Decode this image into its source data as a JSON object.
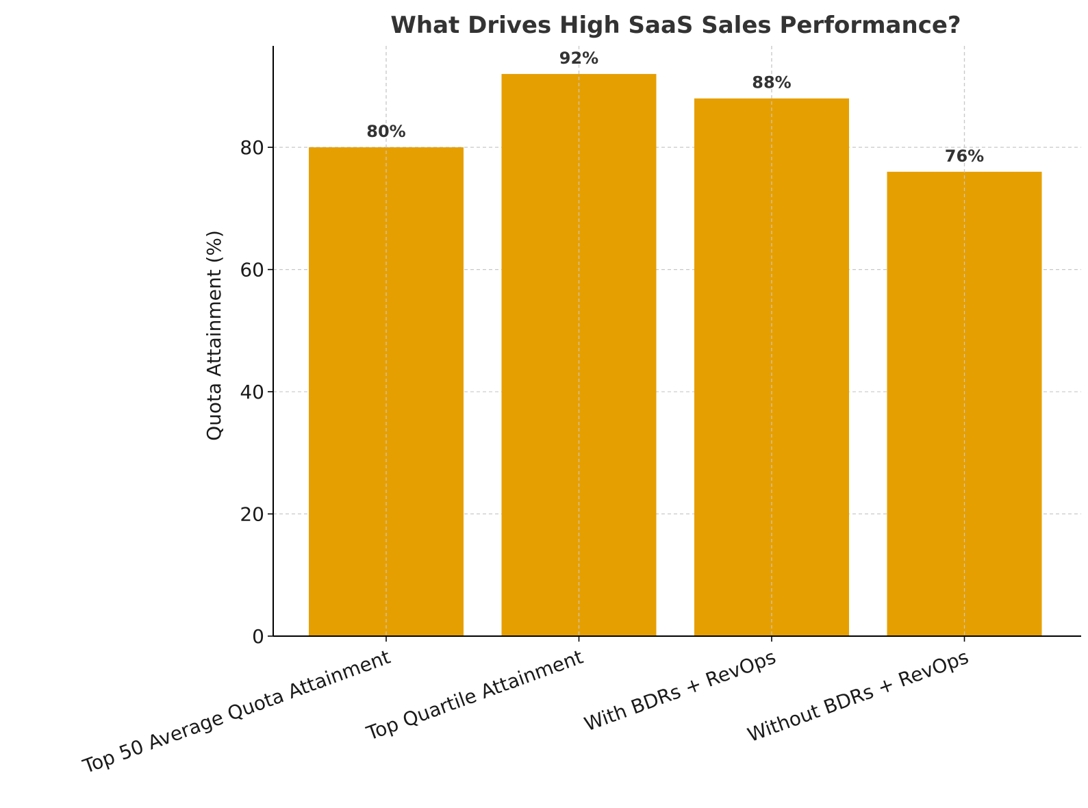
{
  "chart_data": {
    "type": "bar",
    "title": "What Drives High SaaS Sales Performance?",
    "xlabel": "",
    "ylabel": "Quota Attainment (%)",
    "categories": [
      "Top 50 Average Quota Attainment",
      "Top Quartile Attainment",
      "With BDRs + RevOps",
      "Without BDRs + RevOps"
    ],
    "values": [
      80,
      92,
      88,
      76
    ],
    "data_labels": [
      "80%",
      "92%",
      "88%",
      "76%"
    ],
    "ylim": [
      0,
      96.6
    ],
    "yticks": [
      0,
      20,
      40,
      60,
      80
    ],
    "grid": true,
    "bar_color": "#E69F00",
    "legend": null
  }
}
